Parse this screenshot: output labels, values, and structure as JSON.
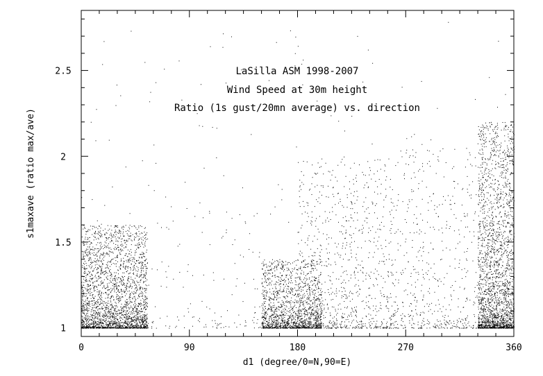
{
  "chart_data": {
    "type": "scatter",
    "title": [
      "LaSilla ASM 1998-2007",
      "Wind Speed at 30m height",
      "Ratio (1s gust/20mn average) vs. direction"
    ],
    "xlabel": "d1 (degree/0=N,90=E)",
    "ylabel": "s1maxave (ratio max/ave)",
    "xlim": [
      0,
      360
    ],
    "ylim": [
      0.95,
      2.85
    ],
    "xticks": [
      0,
      90,
      180,
      270,
      360
    ],
    "yticks": [
      1,
      1.5,
      2,
      2.5
    ],
    "xtick_labels": [
      "0",
      "90",
      "180",
      "270",
      "360"
    ],
    "ytick_labels": [
      "1",
      "1.5",
      "2",
      "2.5"
    ],
    "grid": false,
    "point_color": "#000000",
    "density_clusters": [
      {
        "x_range": [
          0,
          55
        ],
        "y_range": [
          1.0,
          1.6
        ],
        "relative_density": 1.0
      },
      {
        "x_range": [
          55,
          150
        ],
        "y_range": [
          1.0,
          1.7
        ],
        "relative_density": 0.05
      },
      {
        "x_range": [
          150,
          200
        ],
        "y_range": [
          1.0,
          1.4
        ],
        "relative_density": 0.6
      },
      {
        "x_range": [
          180,
          260
        ],
        "y_range": [
          1.0,
          2.0
        ],
        "relative_density": 0.35
      },
      {
        "x_range": [
          260,
          330
        ],
        "y_range": [
          1.0,
          2.1
        ],
        "relative_density": 0.2
      },
      {
        "x_range": [
          330,
          360
        ],
        "y_range": [
          1.0,
          2.2
        ],
        "relative_density": 0.9
      }
    ]
  }
}
